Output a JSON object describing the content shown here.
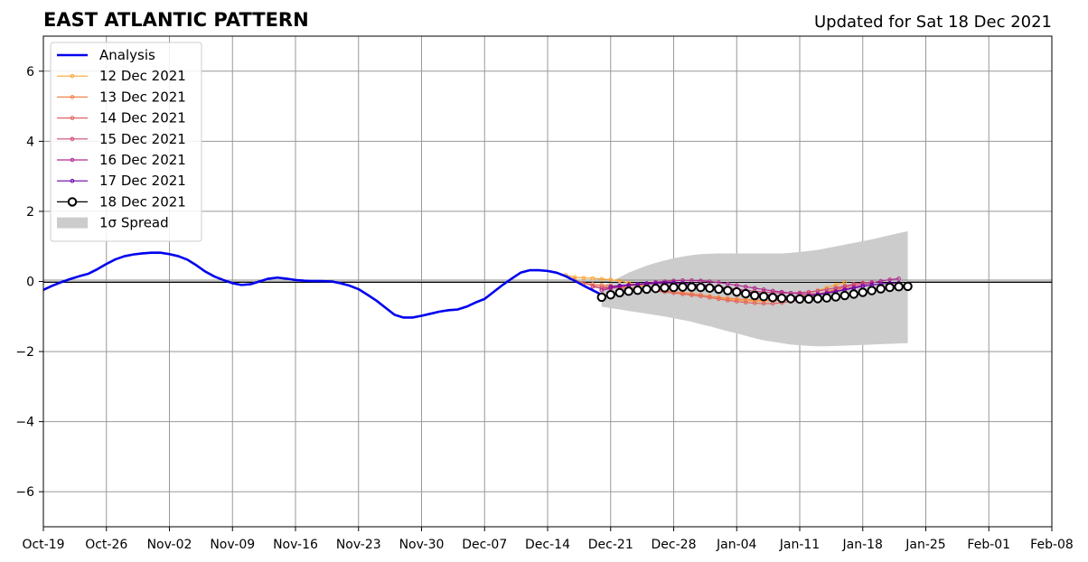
{
  "header": {
    "title": "EAST ATLANTIC PATTERN",
    "updated": "Updated for Sat 18 Dec 2021"
  },
  "chart_data": {
    "type": "line",
    "title": "EAST ATLANTIC PATTERN",
    "subtitle": "Updated for Sat 18 Dec 2021",
    "xlabel": "",
    "ylabel": "",
    "xlim": [
      "2021-10-19",
      "2022-02-08"
    ],
    "ylim": [
      -7,
      7
    ],
    "grid": true,
    "legend_position": "upper-left",
    "x_ticks": [
      {
        "date": "2021-10-19",
        "label": "Oct-19"
      },
      {
        "date": "2021-10-26",
        "label": "Oct-26"
      },
      {
        "date": "2021-11-02",
        "label": "Nov-02"
      },
      {
        "date": "2021-11-09",
        "label": "Nov-09"
      },
      {
        "date": "2021-11-16",
        "label": "Nov-16"
      },
      {
        "date": "2021-11-23",
        "label": "Nov-23"
      },
      {
        "date": "2021-11-30",
        "label": "Nov-30"
      },
      {
        "date": "2021-12-07",
        "label": "Dec-07"
      },
      {
        "date": "2021-12-14",
        "label": "Dec-14"
      },
      {
        "date": "2021-12-21",
        "label": "Dec-21"
      },
      {
        "date": "2021-12-28",
        "label": "Dec-28"
      },
      {
        "date": "2022-01-04",
        "label": "Jan-04"
      },
      {
        "date": "2022-01-11",
        "label": "Jan-11"
      },
      {
        "date": "2022-01-18",
        "label": "Jan-18"
      },
      {
        "date": "2022-01-25",
        "label": "Jan-25"
      },
      {
        "date": "2022-02-01",
        "label": "Feb-01"
      },
      {
        "date": "2022-02-08",
        "label": "Feb-08"
      }
    ],
    "y_ticks": [
      {
        "value": -6,
        "label": "−6"
      },
      {
        "value": -4,
        "label": "−4"
      },
      {
        "value": -2,
        "label": "−2"
      },
      {
        "value": 0,
        "label": "0"
      },
      {
        "value": 2,
        "label": "2"
      },
      {
        "value": 4,
        "label": "4"
      },
      {
        "value": 6,
        "label": "6"
      }
    ],
    "analysis": {
      "name": "Analysis",
      "color": "#0000ee",
      "points": [
        [
          "2021-10-19",
          -0.24
        ],
        [
          "2021-10-20",
          -0.12
        ],
        [
          "2021-10-21",
          -0.02
        ],
        [
          "2021-10-22",
          0.07
        ],
        [
          "2021-10-23",
          0.15
        ],
        [
          "2021-10-24",
          0.22
        ],
        [
          "2021-10-25",
          0.35
        ],
        [
          "2021-10-26",
          0.5
        ],
        [
          "2021-10-27",
          0.63
        ],
        [
          "2021-10-28",
          0.72
        ],
        [
          "2021-10-29",
          0.77
        ],
        [
          "2021-10-30",
          0.8
        ],
        [
          "2021-10-31",
          0.82
        ],
        [
          "2021-11-01",
          0.82
        ],
        [
          "2021-11-02",
          0.78
        ],
        [
          "2021-11-03",
          0.72
        ],
        [
          "2021-11-04",
          0.62
        ],
        [
          "2021-11-05",
          0.46
        ],
        [
          "2021-11-06",
          0.28
        ],
        [
          "2021-11-07",
          0.14
        ],
        [
          "2021-11-08",
          0.04
        ],
        [
          "2021-11-09",
          -0.05
        ],
        [
          "2021-11-10",
          -0.1
        ],
        [
          "2021-11-11",
          -0.08
        ],
        [
          "2021-11-12",
          0.0
        ],
        [
          "2021-11-13",
          0.08
        ],
        [
          "2021-11-14",
          0.11
        ],
        [
          "2021-11-15",
          0.08
        ],
        [
          "2021-11-16",
          0.04
        ],
        [
          "2021-11-17",
          0.02
        ],
        [
          "2021-11-18",
          0.01
        ],
        [
          "2021-11-19",
          0.01
        ],
        [
          "2021-11-20",
          0.0
        ],
        [
          "2021-11-21",
          -0.05
        ],
        [
          "2021-11-22",
          -0.12
        ],
        [
          "2021-11-23",
          -0.22
        ],
        [
          "2021-11-24",
          -0.38
        ],
        [
          "2021-11-25",
          -0.55
        ],
        [
          "2021-11-26",
          -0.75
        ],
        [
          "2021-11-27",
          -0.95
        ],
        [
          "2021-11-28",
          -1.03
        ],
        [
          "2021-11-29",
          -1.03
        ],
        [
          "2021-11-30",
          -0.98
        ],
        [
          "2021-12-01",
          -0.92
        ],
        [
          "2021-12-02",
          -0.86
        ],
        [
          "2021-12-03",
          -0.82
        ],
        [
          "2021-12-04",
          -0.8
        ],
        [
          "2021-12-05",
          -0.72
        ],
        [
          "2021-12-06",
          -0.6
        ],
        [
          "2021-12-07",
          -0.5
        ],
        [
          "2021-12-08",
          -0.3
        ],
        [
          "2021-12-09",
          -0.1
        ],
        [
          "2021-12-10",
          0.08
        ],
        [
          "2021-12-11",
          0.25
        ],
        [
          "2021-12-12",
          0.32
        ],
        [
          "2021-12-13",
          0.32
        ],
        [
          "2021-12-14",
          0.3
        ],
        [
          "2021-12-15",
          0.25
        ],
        [
          "2021-12-16",
          0.15
        ],
        [
          "2021-12-17",
          0.02
        ],
        [
          "2021-12-18",
          -0.12
        ],
        [
          "2021-12-19",
          -0.25
        ],
        [
          "2021-12-20",
          -0.38
        ]
      ]
    },
    "forecasts": [
      {
        "name": "12 Dec 2021",
        "color": "#fca636",
        "start": "2021-12-16",
        "values": [
          0.18,
          0.12,
          0.1,
          0.09,
          0.07,
          0.05,
          0.02,
          -0.04,
          -0.1,
          -0.16,
          -0.21,
          -0.25,
          -0.3,
          -0.34,
          -0.38,
          -0.42,
          -0.45,
          -0.48,
          -0.51,
          -0.53,
          -0.55,
          -0.56,
          -0.56,
          -0.55,
          -0.52,
          -0.47,
          -0.41,
          -0.34,
          -0.26,
          -0.18,
          -0.1,
          -0.03
        ]
      },
      {
        "name": "13 Dec 2021",
        "color": "#f2844b",
        "start": "2021-12-17",
        "values": [
          0.05,
          -0.05,
          -0.08,
          -0.1,
          -0.12,
          -0.15,
          -0.18,
          -0.2,
          -0.22,
          -0.25,
          -0.27,
          -0.3,
          -0.32,
          -0.35,
          -0.38,
          -0.42,
          -0.45,
          -0.48,
          -0.5,
          -0.52,
          -0.53,
          -0.54,
          -0.55,
          -0.54,
          -0.52,
          -0.48,
          -0.43,
          -0.37,
          -0.3,
          -0.22,
          -0.15,
          -0.08
        ]
      },
      {
        "name": "14 Dec 2021",
        "color": "#e16462",
        "start": "2021-12-18",
        "values": [
          -0.05,
          -0.12,
          -0.15,
          -0.17,
          -0.19,
          -0.2,
          -0.22,
          -0.24,
          -0.27,
          -0.3,
          -0.33,
          -0.36,
          -0.39,
          -0.42,
          -0.46,
          -0.5,
          -0.54,
          -0.57,
          -0.6,
          -0.62,
          -0.63,
          -0.63,
          -0.61,
          -0.57,
          -0.52,
          -0.46,
          -0.39,
          -0.31,
          -0.24,
          -0.17,
          -0.1,
          -0.05
        ]
      },
      {
        "name": "15 Dec 2021",
        "color": "#cc4778",
        "start": "2021-12-19",
        "values": [
          -0.15,
          -0.2,
          -0.18,
          -0.15,
          -0.12,
          -0.1,
          -0.08,
          -0.06,
          -0.05,
          -0.05,
          -0.06,
          -0.08,
          -0.1,
          -0.13,
          -0.16,
          -0.19,
          -0.22,
          -0.25,
          -0.28,
          -0.3,
          -0.32,
          -0.33,
          -0.33,
          -0.32,
          -0.3,
          -0.27,
          -0.23,
          -0.18,
          -0.13,
          -0.08,
          -0.04,
          -0.02
        ]
      },
      {
        "name": "16 Dec 2021",
        "color": "#b12a90",
        "start": "2021-12-20",
        "values": [
          -0.25,
          -0.2,
          -0.15,
          -0.12,
          -0.08,
          -0.05,
          -0.02,
          0.0,
          0.02,
          0.03,
          0.03,
          0.02,
          0.0,
          -0.03,
          -0.07,
          -0.11,
          -0.15,
          -0.19,
          -0.23,
          -0.27,
          -0.3,
          -0.33,
          -0.35,
          -0.36,
          -0.35,
          -0.32,
          -0.28,
          -0.22,
          -0.16,
          -0.1,
          -0.04,
          0.01,
          0.05,
          0.08
        ]
      },
      {
        "name": "17 Dec 2021",
        "color": "#6a00a8",
        "start": "2021-12-21",
        "values": [
          -0.15,
          -0.12,
          -0.1,
          -0.08,
          -0.06,
          -0.05,
          -0.04,
          -0.04,
          -0.05,
          -0.07,
          -0.1,
          -0.13,
          -0.17,
          -0.21,
          -0.25,
          -0.29,
          -0.33,
          -0.37,
          -0.4,
          -0.42,
          -0.43,
          -0.43,
          -0.41,
          -0.38,
          -0.34,
          -0.29,
          -0.24,
          -0.19,
          -0.14,
          -0.1,
          -0.07,
          -0.05,
          -0.04
        ]
      }
    ],
    "ensemble": {
      "name": "18 Dec 2021",
      "color": "#000000",
      "start": "2021-12-20",
      "values": [
        -0.45,
        -0.38,
        -0.32,
        -0.28,
        -0.25,
        -0.22,
        -0.2,
        -0.18,
        -0.17,
        -0.16,
        -0.16,
        -0.17,
        -0.19,
        -0.22,
        -0.26,
        -0.3,
        -0.35,
        -0.4,
        -0.43,
        -0.46,
        -0.48,
        -0.49,
        -0.5,
        -0.5,
        -0.49,
        -0.47,
        -0.44,
        -0.4,
        -0.36,
        -0.31,
        -0.26,
        -0.21,
        -0.17,
        -0.15,
        -0.14
      ]
    },
    "spread": {
      "name": "1σ Spread",
      "color": "#cccccc",
      "start": "2021-12-20",
      "upper": [
        -0.15,
        0.0,
        0.12,
        0.25,
        0.35,
        0.45,
        0.53,
        0.6,
        0.66,
        0.71,
        0.75,
        0.78,
        0.79,
        0.8,
        0.8,
        0.8,
        0.8,
        0.8,
        0.8,
        0.8,
        0.8,
        0.82,
        0.84,
        0.87,
        0.9,
        0.95,
        1.0,
        1.05,
        1.1,
        1.15,
        1.2,
        1.26,
        1.32,
        1.38,
        1.43
      ],
      "lower": [
        -0.72,
        -0.76,
        -0.8,
        -0.84,
        -0.88,
        -0.92,
        -0.96,
        -1.0,
        -1.05,
        -1.1,
        -1.15,
        -1.22,
        -1.28,
        -1.35,
        -1.42,
        -1.48,
        -1.55,
        -1.62,
        -1.68,
        -1.72,
        -1.76,
        -1.8,
        -1.82,
        -1.84,
        -1.85,
        -1.85,
        -1.84,
        -1.83,
        -1.82,
        -1.81,
        -1.8,
        -1.79,
        -1.78,
        -1.77,
        -1.76
      ]
    }
  }
}
